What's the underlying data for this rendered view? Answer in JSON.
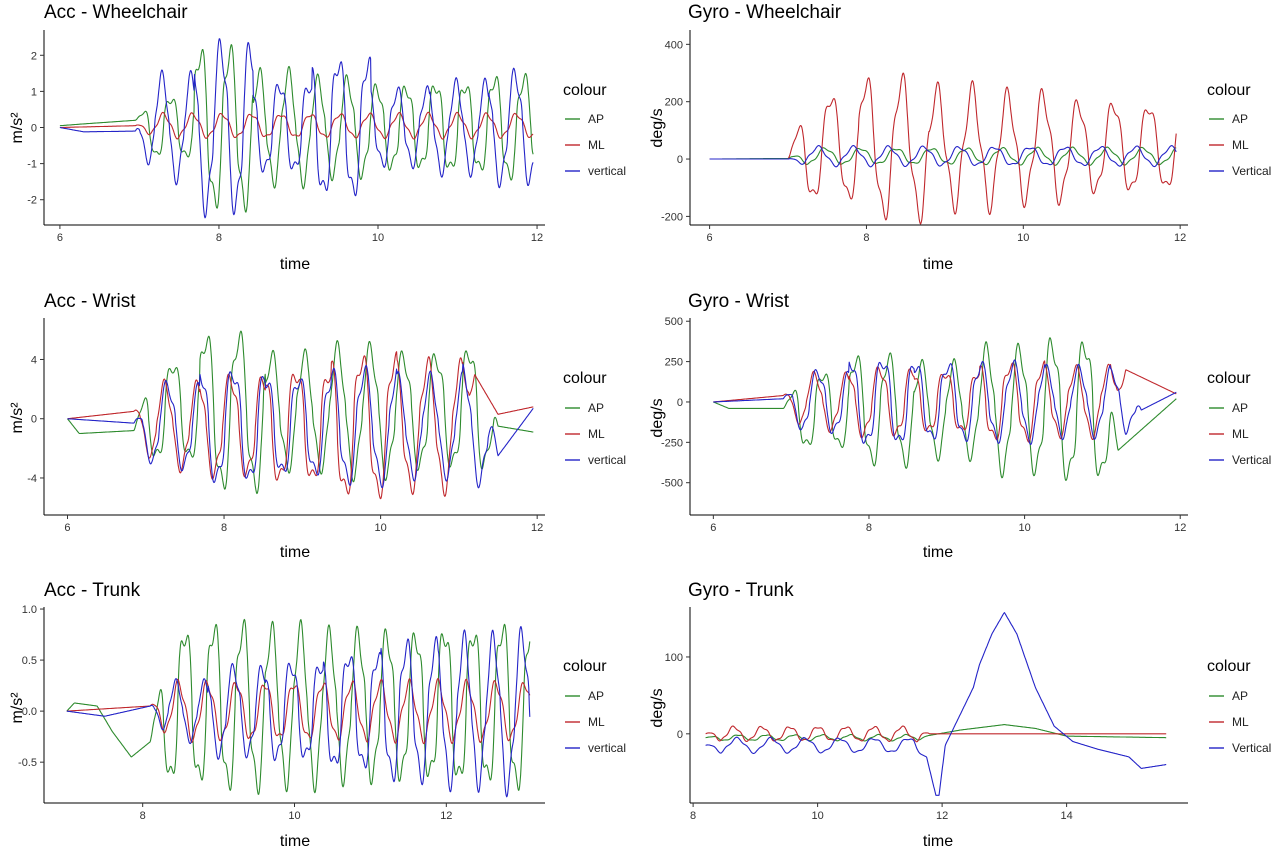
{
  "colors": {
    "AP": "#2e8b2e",
    "ML": "#c0282d",
    "vertical": "#2424c8"
  },
  "chart_data": [
    {
      "type": "line",
      "title": "Acc - Wheelchair",
      "xlabel": "time",
      "ylabel": "m/s²",
      "xlim": [
        5.8,
        12.1
      ],
      "ylim": [
        -2.7,
        2.7
      ],
      "xticks": [
        6,
        8,
        10,
        12
      ],
      "yticks": [
        -2,
        -1,
        0,
        1,
        2
      ],
      "grid": false,
      "legend": {
        "title": "colour",
        "position": "right",
        "entries": [
          "AP",
          "ML",
          "vertical"
        ]
      },
      "t0": 6.0,
      "t1": 11.95,
      "onset": 6.95,
      "series": [
        {
          "name": "AP",
          "color_key": "AP",
          "pre": [
            [
              6.0,
              0.05
            ],
            [
              6.3,
              0.1
            ],
            [
              6.95,
              0.2
            ]
          ],
          "base": 0.0,
          "amp": 1.1,
          "amps": [
            0.9,
            2.3,
            1.6,
            1.4,
            1.2,
            1.3,
            1.5,
            1.6
          ],
          "period": 0.37,
          "phase": 0.3,
          "env": 4
        },
        {
          "name": "ML",
          "color_key": "ML",
          "pre": [
            [
              6.0,
              0.0
            ],
            [
              6.95,
              0.05
            ]
          ],
          "base": 0.05,
          "amp": 0.35,
          "period": 0.37,
          "phase": 1.9,
          "env": 0.5
        },
        {
          "name": "vertical",
          "color_key": "vertical",
          "pre": [
            [
              6.0,
              0.0
            ],
            [
              6.3,
              -0.12
            ],
            [
              6.95,
              -0.1
            ]
          ],
          "base": 0.0,
          "amp": 1.2,
          "amps": [
            1.5,
            2.4,
            1.3,
            2.0,
            1.1,
            1.3,
            1.6,
            1.8
          ],
          "period": 0.37,
          "phase": 2.2,
          "env": 4
        }
      ]
    },
    {
      "type": "line",
      "title": "Gyro - Wheelchair",
      "xlabel": "time",
      "ylabel": "deg/s",
      "xlim": [
        5.75,
        12.1
      ],
      "ylim": [
        -230,
        450
      ],
      "xticks": [
        6,
        8,
        10,
        12
      ],
      "yticks": [
        -200,
        0,
        200,
        400
      ],
      "grid": false,
      "legend": {
        "title": "colour",
        "position": "right",
        "entries": [
          "AP",
          "ML",
          "Vertical"
        ]
      },
      "t0": 6.0,
      "t1": 11.95,
      "onset": 7.0,
      "series": [
        {
          "name": "AP",
          "color_key": "AP",
          "pre": [
            [
              6.0,
              0.0
            ],
            [
              7.0,
              2.0
            ]
          ],
          "base": 10.0,
          "amp": 30.0,
          "period": 0.45,
          "phase": 1.2,
          "env": 1
        },
        {
          "name": "ML",
          "color_key": "ML",
          "pre": [
            [
              6.0,
              0.0
            ],
            [
              7.0,
              0.0
            ]
          ],
          "base": 40.0,
          "amp": 150.0,
          "amps": [
            200,
            260,
            220,
            200,
            170,
            160,
            170,
            180
          ],
          "period": 0.45,
          "phase": 0.2,
          "env": 2
        },
        {
          "name": "Vertical",
          "color_key": "vertical",
          "pre": [
            [
              6.0,
              0.0
            ],
            [
              7.0,
              0.0
            ]
          ],
          "base": 10.0,
          "amp": 35.0,
          "period": 0.45,
          "phase": 2.5,
          "env": 1
        }
      ]
    },
    {
      "type": "line",
      "title": "Acc - Wrist",
      "xlabel": "time",
      "ylabel": "m/s²",
      "xlim": [
        5.7,
        12.1
      ],
      "ylim": [
        -6.5,
        6.8
      ],
      "xticks": [
        6,
        8,
        10,
        12
      ],
      "yticks": [
        -4,
        0,
        4
      ],
      "grid": false,
      "legend": {
        "title": "colour",
        "position": "right",
        "entries": [
          "AP",
          "ML",
          "vertical"
        ]
      },
      "t0": 6.0,
      "t1": 11.95,
      "onset": 6.85,
      "series": [
        {
          "name": "AP",
          "color_key": "AP",
          "pre": [
            [
              6.0,
              0.0
            ],
            [
              6.15,
              -1.0
            ],
            [
              6.85,
              -0.8
            ]
          ],
          "base": 0.5,
          "amp": 4.0,
          "amps": [
            3.5,
            5.5,
            4.0,
            4.5,
            4.0,
            4.5,
            5.5,
            5.0
          ],
          "period": 0.42,
          "phase": 0.4,
          "env": 4,
          "post": [
            [
              11.5,
              -0.5
            ],
            [
              11.95,
              -0.9
            ]
          ]
        },
        {
          "name": "ML",
          "color_key": "ML",
          "pre": [
            [
              6.0,
              0.0
            ],
            [
              6.85,
              0.5
            ]
          ],
          "base": -0.5,
          "amp": 3.3,
          "amps": [
            3.0,
            3.5,
            4.0,
            5.0,
            4.5,
            5.0,
            4.0,
            3.0
          ],
          "period": 0.42,
          "phase": 2.0,
          "env": 4,
          "post": [
            [
              11.2,
              3.0
            ],
            [
              11.5,
              0.3
            ],
            [
              11.95,
              0.8
            ]
          ]
        },
        {
          "name": "vertical",
          "color_key": "vertical",
          "pre": [
            [
              6.0,
              0.0
            ],
            [
              6.85,
              -0.3
            ]
          ],
          "base": -0.5,
          "amp": 3.0,
          "amps": [
            3.0,
            4.0,
            3.5,
            4.0,
            3.5,
            4.0,
            3.5,
            3.0
          ],
          "period": 0.42,
          "phase": 1.5,
          "env": 4,
          "post": [
            [
              11.5,
              -2.5
            ],
            [
              11.95,
              0.7
            ]
          ]
        }
      ]
    },
    {
      "type": "line",
      "title": "Gyro - Wrist",
      "xlabel": "time",
      "ylabel": "deg/s",
      "xlim": [
        5.7,
        12.1
      ],
      "ylim": [
        -700,
        520
      ],
      "xticks": [
        6,
        8,
        10,
        12
      ],
      "yticks": [
        -500,
        -250,
        0,
        250,
        500
      ],
      "grid": false,
      "legend": {
        "title": "colour",
        "position": "right",
        "entries": [
          "AP",
          "ML",
          "Vertical"
        ]
      },
      "t0": 6.0,
      "t1": 11.95,
      "onset": 6.9,
      "series": [
        {
          "name": "AP",
          "color_key": "AP",
          "pre": [
            [
              6.0,
              0.0
            ],
            [
              6.2,
              -40.0
            ],
            [
              6.9,
              -40.0
            ]
          ],
          "base": -50.0,
          "amp": 300.0,
          "amps": [
            250,
            350,
            300,
            400,
            450,
            500,
            450,
            400
          ],
          "period": 0.42,
          "phase": 0.2,
          "env": 4,
          "post": [
            [
              11.2,
              -300
            ],
            [
              11.95,
              20
            ]
          ]
        },
        {
          "name": "ML",
          "color_key": "ML",
          "pre": [
            [
              6.0,
              0.0
            ],
            [
              6.9,
              40.0
            ]
          ],
          "base": 0.0,
          "amp": 180.0,
          "amps": [
            180,
            220,
            200,
            250,
            220,
            250,
            200,
            180
          ],
          "period": 0.42,
          "phase": 1.9,
          "env": 4,
          "post": [
            [
              11.3,
              200
            ],
            [
              11.95,
              50
            ]
          ]
        },
        {
          "name": "Vertical",
          "color_key": "vertical",
          "pre": [
            [
              6.0,
              0.0
            ],
            [
              6.9,
              20.0
            ]
          ],
          "base": 0.0,
          "amp": 200.0,
          "amps": [
            200,
            280,
            250,
            250,
            220,
            200,
            200,
            180
          ],
          "period": 0.42,
          "phase": 1.3,
          "env": 4,
          "post": [
            [
              11.5,
              -50
            ],
            [
              11.95,
              60
            ]
          ]
        }
      ]
    },
    {
      "type": "line",
      "title": "Acc - Trunk",
      "xlabel": "time",
      "ylabel": "m/s²",
      "xlim": [
        6.7,
        13.3
      ],
      "ylim": [
        -0.9,
        1.02
      ],
      "xticks": [
        8,
        10,
        12
      ],
      "yticks": [
        -0.5,
        0.0,
        0.5,
        1.0
      ],
      "ytick_labels": [
        "-0.5",
        "0.0",
        "0.5",
        "1.0"
      ],
      "grid": false,
      "legend": {
        "title": "colour",
        "position": "right",
        "entries": [
          "AP",
          "ML",
          "vertical"
        ]
      },
      "t0": 7.0,
      "t1": 13.1,
      "onset": 8.1,
      "series": [
        {
          "name": "AP",
          "color_key": "AP",
          "pre": [
            [
              7.0,
              0.0
            ],
            [
              7.1,
              0.08
            ],
            [
              7.4,
              0.05
            ],
            [
              7.6,
              -0.2
            ],
            [
              7.85,
              -0.45
            ],
            [
              8.1,
              -0.3
            ]
          ],
          "base": 0.05,
          "amp": 0.65,
          "amps": [
            0.8,
            0.85,
            0.8,
            0.75,
            0.75,
            0.8,
            0.85,
            0.8
          ],
          "period": 0.38,
          "phase": 0.3,
          "env": 4
        },
        {
          "name": "ML",
          "color_key": "ML",
          "pre": [
            [
              7.0,
              0.0
            ],
            [
              8.1,
              0.05
            ]
          ],
          "base": 0.0,
          "amp": 0.3,
          "period": 0.38,
          "phase": 1.7,
          "env": 1
        },
        {
          "name": "vertical",
          "color_key": "vertical",
          "pre": [
            [
              7.0,
              0.0
            ],
            [
              7.5,
              -0.05
            ],
            [
              8.1,
              0.05
            ]
          ],
          "base": 0.0,
          "amp": 0.5,
          "amps": [
            0.3,
            0.45,
            0.5,
            0.6,
            0.7,
            0.75,
            0.8,
            0.8
          ],
          "period": 0.38,
          "phase": 2.3,
          "env": 4
        }
      ]
    },
    {
      "type": "line",
      "title": "Gyro - Trunk",
      "xlabel": "time",
      "ylabel": "deg/s",
      "xlim": [
        7.95,
        15.95
      ],
      "ylim": [
        -90,
        165
      ],
      "xticks": [
        8,
        10,
        12,
        14
      ],
      "yticks": [
        0,
        100
      ],
      "grid": false,
      "legend": {
        "title": "colour",
        "position": "right",
        "entries": [
          "AP",
          "ML",
          "Vertical"
        ]
      },
      "t0": 8.2,
      "t1": 15.6,
      "onset": 8.2,
      "series": [
        {
          "name": "AP",
          "color_key": "AP",
          "pre": [],
          "base": -5.0,
          "amp": 4.0,
          "period": 0.45,
          "phase": 0.5,
          "env": 1,
          "post": [
            [
              11.8,
              -2
            ],
            [
              12.3,
              5
            ],
            [
              13.0,
              12
            ],
            [
              13.5,
              7
            ],
            [
              14.0,
              -3
            ],
            [
              15.6,
              -5
            ]
          ]
        },
        {
          "name": "ML",
          "color_key": "ML",
          "pre": [],
          "base": 0.0,
          "amp": 10.0,
          "period": 0.45,
          "phase": 1.5,
          "env": 1,
          "post": [
            [
              11.8,
              0
            ],
            [
              15.6,
              0
            ]
          ]
        },
        {
          "name": "Vertical",
          "color_key": "vertical",
          "pre": [],
          "base": -15.0,
          "amp": 10.0,
          "period": 0.55,
          "phase": 2.1,
          "env": 1,
          "post": [
            [
              11.75,
              -30
            ],
            [
              11.9,
              -80
            ],
            [
              11.95,
              -80
            ],
            [
              12.05,
              -15
            ],
            [
              12.2,
              10
            ],
            [
              12.5,
              60
            ],
            [
              12.6,
              90
            ],
            [
              12.8,
              130
            ],
            [
              13.0,
              158
            ],
            [
              13.2,
              130
            ],
            [
              13.5,
              60
            ],
            [
              13.8,
              10
            ],
            [
              14.1,
              -10
            ],
            [
              14.5,
              -20
            ],
            [
              15.0,
              -30
            ],
            [
              15.2,
              -45
            ],
            [
              15.6,
              -40
            ]
          ]
        }
      ]
    }
  ]
}
